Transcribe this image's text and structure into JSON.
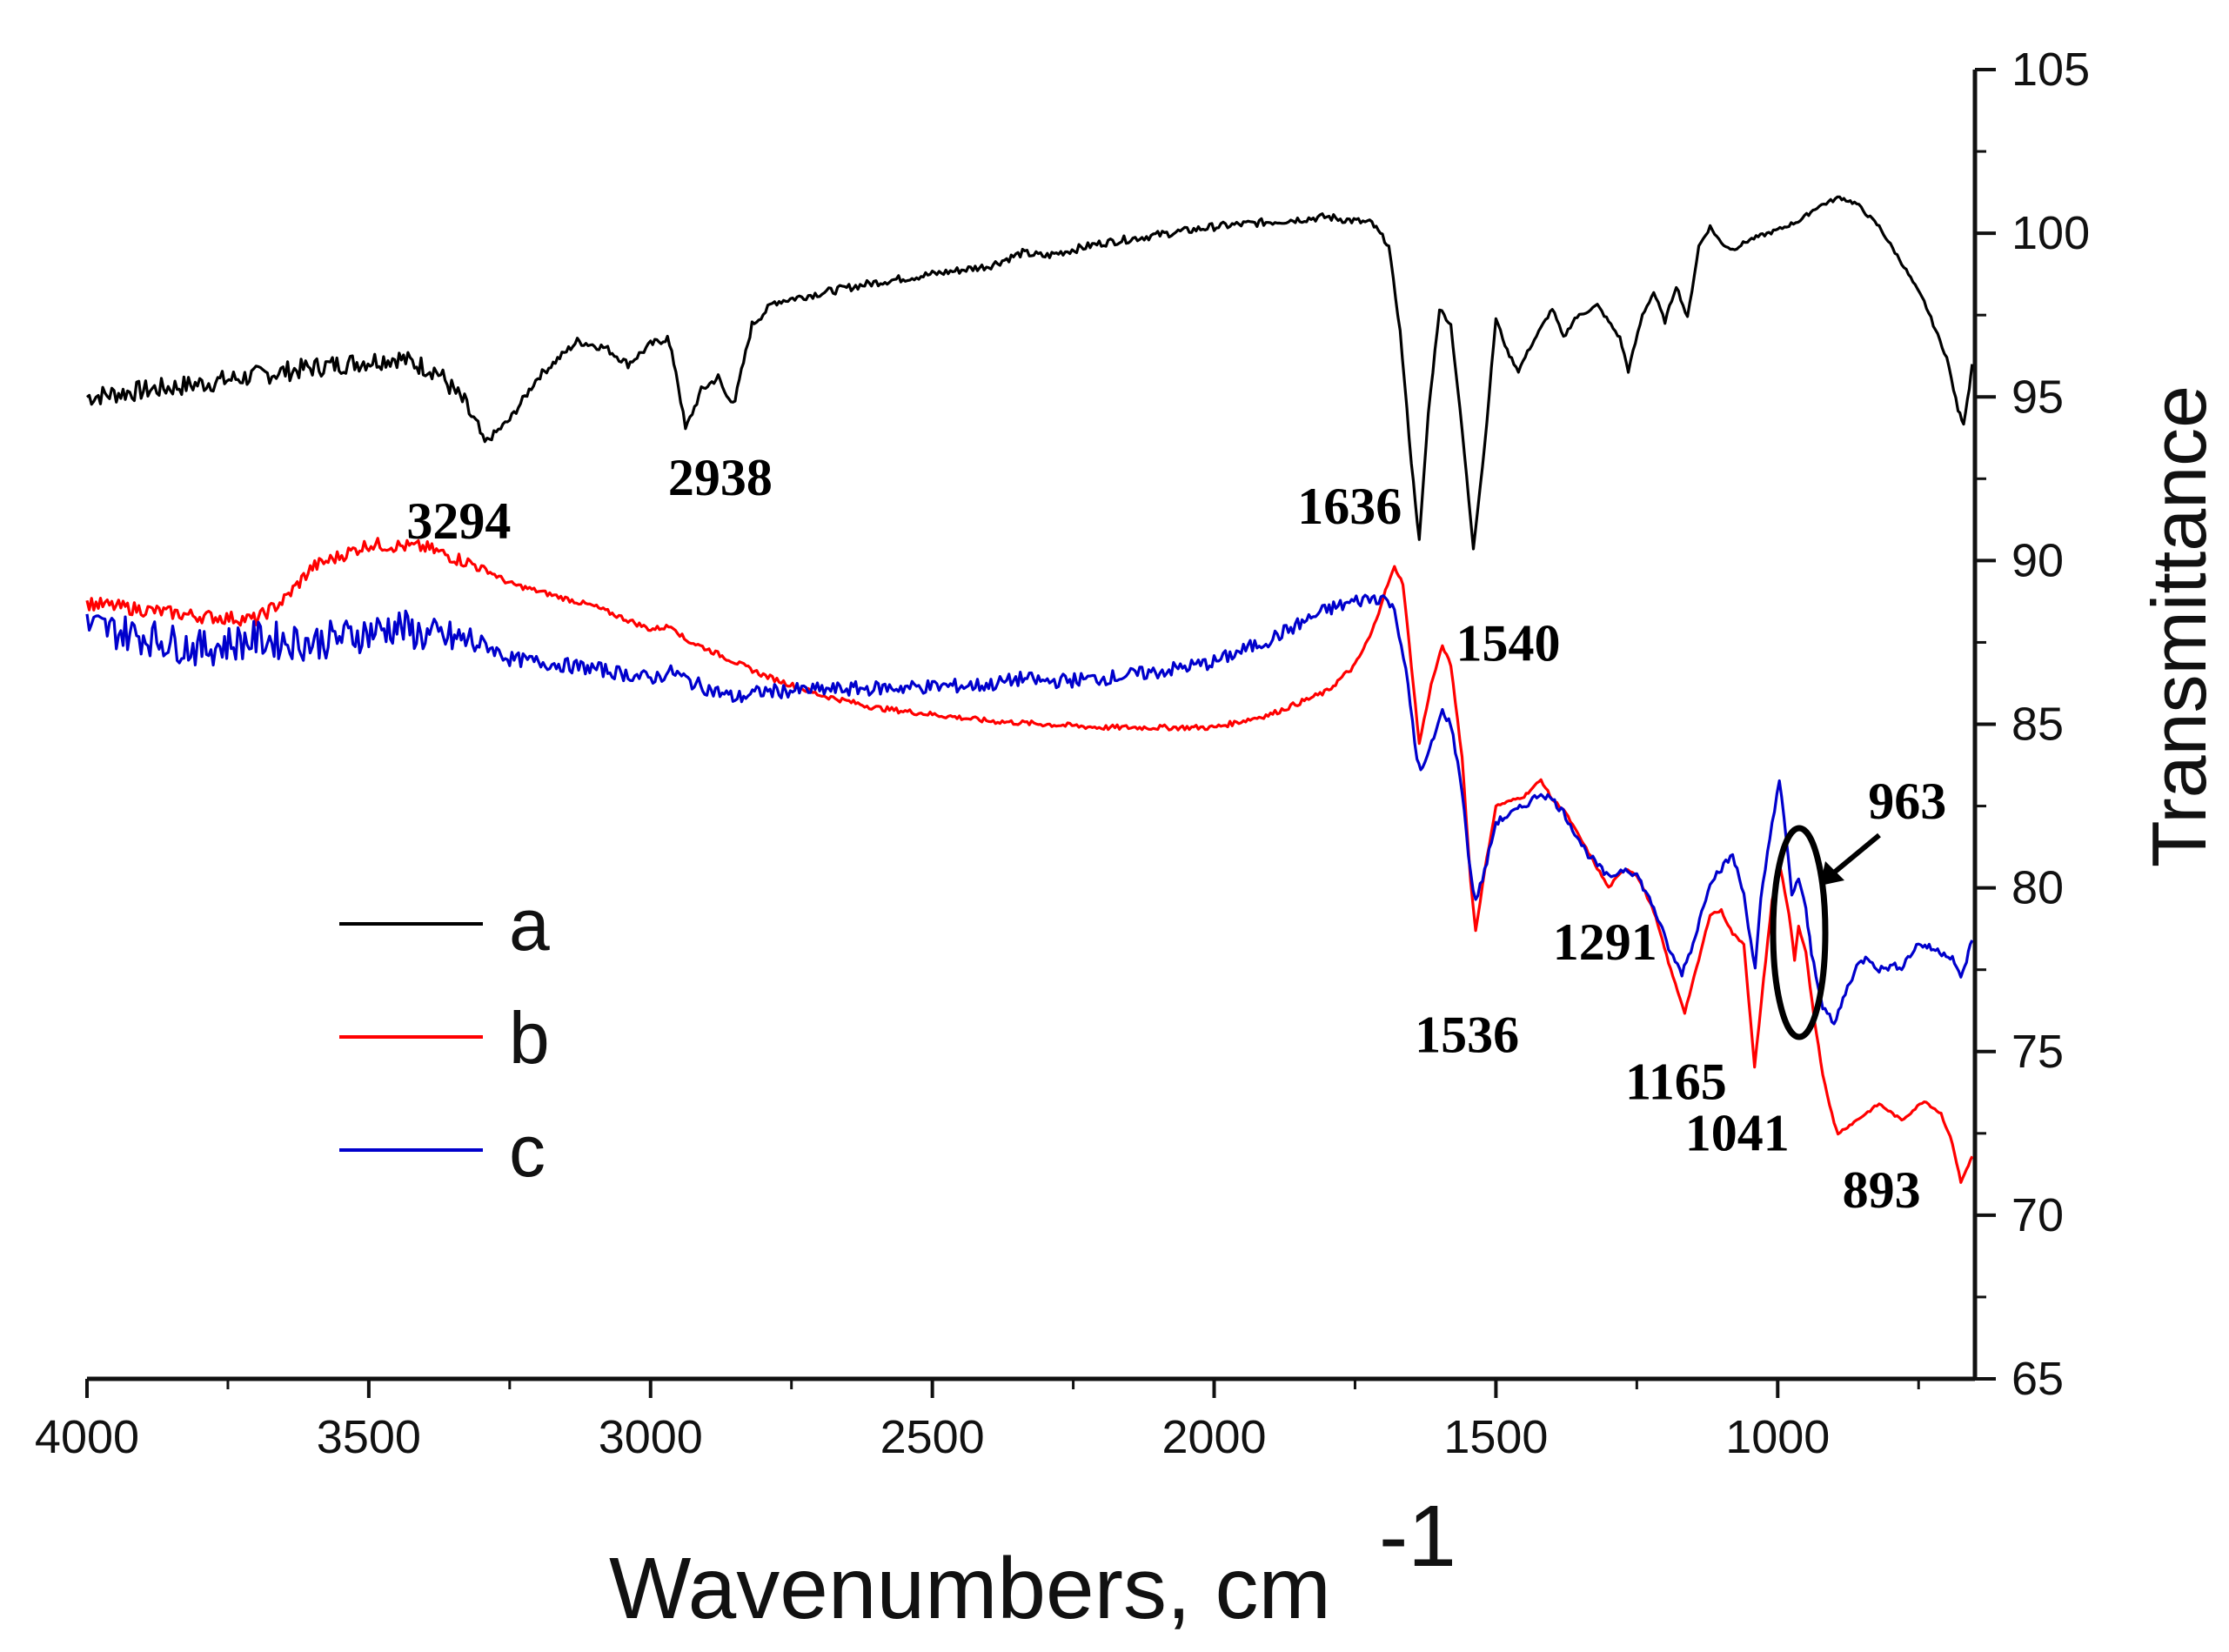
{
  "chart_data": {
    "type": "line",
    "title": "",
    "xlabel": "Wavenumbers, cm",
    "xlabel_superscript": "-1",
    "ylabel": "Transmittance",
    "xlim": [
      4000,
      650
    ],
    "ylim": [
      65,
      105
    ],
    "x_ticks": [
      4000,
      3500,
      3000,
      2500,
      2000,
      1500,
      1000
    ],
    "y_ticks": [
      65,
      70,
      75,
      80,
      85,
      90,
      95,
      100,
      105
    ],
    "x_tick_labels": [
      "4000",
      "3500",
      "3000",
      "2500",
      "2000",
      "1500",
      "1000"
    ],
    "y_tick_labels": [
      "65",
      "70",
      "75",
      "80",
      "85",
      "90",
      "95",
      "100",
      "105"
    ],
    "grid": false,
    "legend_position": "center-left",
    "series": [
      {
        "name": "a",
        "color": "#000000",
        "points": [
          [
            4000,
            95.0
          ],
          [
            3800,
            95.4
          ],
          [
            3600,
            95.9
          ],
          [
            3450,
            96.2
          ],
          [
            3380,
            95.8
          ],
          [
            3330,
            94.8
          ],
          [
            3294,
            93.6
          ],
          [
            3250,
            94.3
          ],
          [
            3200,
            95.6
          ],
          [
            3130,
            96.7
          ],
          [
            3080,
            96.5
          ],
          [
            3040,
            96.0
          ],
          [
            3000,
            96.6
          ],
          [
            2970,
            96.8
          ],
          [
            2955,
            95.8
          ],
          [
            2938,
            94.0
          ],
          [
            2910,
            95.2
          ],
          [
            2880,
            95.6
          ],
          [
            2865,
            95.0
          ],
          [
            2850,
            94.9
          ],
          [
            2820,
            97.2
          ],
          [
            2780,
            97.9
          ],
          [
            2600,
            98.5
          ],
          [
            2400,
            99.0
          ],
          [
            2340,
            99.4
          ],
          [
            2300,
            99.3
          ],
          [
            2200,
            99.7
          ],
          [
            2000,
            100.2
          ],
          [
            1800,
            100.5
          ],
          [
            1720,
            100.3
          ],
          [
            1690,
            99.6
          ],
          [
            1670,
            97.0
          ],
          [
            1650,
            93.0
          ],
          [
            1636,
            90.6
          ],
          [
            1620,
            94.5
          ],
          [
            1600,
            97.7
          ],
          [
            1580,
            97.2
          ],
          [
            1560,
            94.0
          ],
          [
            1540,
            90.4
          ],
          [
            1520,
            93.5
          ],
          [
            1500,
            97.4
          ],
          [
            1480,
            96.4
          ],
          [
            1460,
            95.8
          ],
          [
            1440,
            96.5
          ],
          [
            1400,
            97.7
          ],
          [
            1380,
            96.8
          ],
          [
            1360,
            97.4
          ],
          [
            1320,
            97.8
          ],
          [
            1280,
            96.8
          ],
          [
            1265,
            95.8
          ],
          [
            1240,
            97.5
          ],
          [
            1220,
            98.2
          ],
          [
            1200,
            97.3
          ],
          [
            1180,
            98.4
          ],
          [
            1160,
            97.4
          ],
          [
            1140,
            99.6
          ],
          [
            1120,
            100.2
          ],
          [
            1100,
            99.7
          ],
          [
            1080,
            99.5
          ],
          [
            1050,
            99.8
          ],
          [
            1000,
            100.1
          ],
          [
            960,
            100.4
          ],
          [
            930,
            100.8
          ],
          [
            890,
            101.1
          ],
          [
            860,
            100.9
          ],
          [
            820,
            100.2
          ],
          [
            780,
            99.1
          ],
          [
            740,
            97.9
          ],
          [
            700,
            96.2
          ],
          [
            680,
            94.6
          ],
          [
            670,
            94.2
          ],
          [
            660,
            95.3
          ],
          [
            655,
            96.0
          ]
        ]
      },
      {
        "name": "b",
        "color": "#ff0000",
        "points": [
          [
            4000,
            88.7
          ],
          [
            3900,
            88.5
          ],
          [
            3800,
            88.3
          ],
          [
            3700,
            88.2
          ],
          [
            3650,
            88.8
          ],
          [
            3600,
            89.8
          ],
          [
            3500,
            90.5
          ],
          [
            3400,
            90.4
          ],
          [
            3300,
            89.8
          ],
          [
            3250,
            89.3
          ],
          [
            3100,
            88.6
          ],
          [
            3000,
            87.9
          ],
          [
            2960,
            88.0
          ],
          [
            2940,
            87.6
          ],
          [
            2900,
            87.3
          ],
          [
            2850,
            86.9
          ],
          [
            2800,
            86.5
          ],
          [
            2700,
            85.9
          ],
          [
            2600,
            85.5
          ],
          [
            2400,
            85.1
          ],
          [
            2200,
            84.9
          ],
          [
            2000,
            84.9
          ],
          [
            1900,
            85.3
          ],
          [
            1800,
            86.0
          ],
          [
            1750,
            86.8
          ],
          [
            1720,
            87.8
          ],
          [
            1700,
            88.9
          ],
          [
            1680,
            89.8
          ],
          [
            1665,
            89.3
          ],
          [
            1650,
            86.8
          ],
          [
            1636,
            84.4
          ],
          [
            1615,
            86.2
          ],
          [
            1595,
            87.4
          ],
          [
            1580,
            86.8
          ],
          [
            1560,
            84.0
          ],
          [
            1545,
            80.2
          ],
          [
            1536,
            78.7
          ],
          [
            1520,
            80.5
          ],
          [
            1500,
            82.5
          ],
          [
            1450,
            82.8
          ],
          [
            1420,
            83.3
          ],
          [
            1400,
            82.7
          ],
          [
            1380,
            82.4
          ],
          [
            1340,
            81.2
          ],
          [
            1300,
            80.0
          ],
          [
            1291,
            80.2
          ],
          [
            1270,
            80.6
          ],
          [
            1250,
            80.4
          ],
          [
            1220,
            79.3
          ],
          [
            1190,
            77.5
          ],
          [
            1165,
            76.2
          ],
          [
            1140,
            77.8
          ],
          [
            1120,
            79.2
          ],
          [
            1100,
            79.3
          ],
          [
            1080,
            78.6
          ],
          [
            1060,
            78.3
          ],
          [
            1041,
            74.5
          ],
          [
            1025,
            77.2
          ],
          [
            1010,
            79.6
          ],
          [
            995,
            80.6
          ],
          [
            980,
            79.2
          ],
          [
            970,
            77.8
          ],
          [
            963,
            78.8
          ],
          [
            950,
            78.0
          ],
          [
            935,
            76.0
          ],
          [
            920,
            74.3
          ],
          [
            900,
            72.8
          ],
          [
            893,
            72.5
          ],
          [
            860,
            72.9
          ],
          [
            820,
            73.4
          ],
          [
            780,
            72.9
          ],
          [
            740,
            73.5
          ],
          [
            710,
            73.1
          ],
          [
            690,
            72.2
          ],
          [
            675,
            71.0
          ],
          [
            665,
            71.4
          ],
          [
            655,
            71.8
          ]
        ]
      },
      {
        "name": "c",
        "color": "#0000cc",
        "points": [
          [
            4000,
            88.0
          ],
          [
            3900,
            87.7
          ],
          [
            3800,
            87.3
          ],
          [
            3700,
            87.6
          ],
          [
            3600,
            87.5
          ],
          [
            3500,
            87.8
          ],
          [
            3450,
            88.0
          ],
          [
            3400,
            87.7
          ],
          [
            3300,
            87.5
          ],
          [
            3250,
            87.0
          ],
          [
            3100,
            86.7
          ],
          [
            3000,
            86.4
          ],
          [
            2960,
            86.6
          ],
          [
            2930,
            86.3
          ],
          [
            2900,
            86.1
          ],
          [
            2850,
            85.8
          ],
          [
            2800,
            86.0
          ],
          [
            2600,
            86.1
          ],
          [
            2400,
            86.2
          ],
          [
            2340,
            86.4
          ],
          [
            2300,
            86.3
          ],
          [
            2200,
            86.4
          ],
          [
            2100,
            86.6
          ],
          [
            2000,
            86.9
          ],
          [
            1900,
            87.6
          ],
          [
            1800,
            88.5
          ],
          [
            1740,
            88.8
          ],
          [
            1700,
            88.9
          ],
          [
            1680,
            88.5
          ],
          [
            1660,
            86.7
          ],
          [
            1640,
            83.9
          ],
          [
            1630,
            83.6
          ],
          [
            1610,
            84.6
          ],
          [
            1595,
            85.4
          ],
          [
            1580,
            85.0
          ],
          [
            1560,
            83.0
          ],
          [
            1545,
            80.4
          ],
          [
            1536,
            79.6
          ],
          [
            1520,
            80.5
          ],
          [
            1500,
            82.0
          ],
          [
            1450,
            82.5
          ],
          [
            1420,
            82.9
          ],
          [
            1400,
            82.7
          ],
          [
            1380,
            82.3
          ],
          [
            1340,
            81.1
          ],
          [
            1300,
            80.3
          ],
          [
            1291,
            80.4
          ],
          [
            1270,
            80.6
          ],
          [
            1250,
            80.4
          ],
          [
            1220,
            79.4
          ],
          [
            1190,
            78.0
          ],
          [
            1170,
            77.4
          ],
          [
            1150,
            78.3
          ],
          [
            1120,
            80.2
          ],
          [
            1100,
            80.6
          ],
          [
            1080,
            81.0
          ],
          [
            1060,
            79.8
          ],
          [
            1040,
            77.5
          ],
          [
            1030,
            79.6
          ],
          [
            1010,
            82.0
          ],
          [
            997,
            83.3
          ],
          [
            985,
            81.5
          ],
          [
            975,
            79.8
          ],
          [
            963,
            80.3
          ],
          [
            950,
            79.3
          ],
          [
            940,
            78.0
          ],
          [
            920,
            76.4
          ],
          [
            900,
            75.8
          ],
          [
            880,
            76.8
          ],
          [
            860,
            77.6
          ],
          [
            840,
            77.9
          ],
          [
            820,
            77.5
          ],
          [
            800,
            77.6
          ],
          [
            780,
            77.6
          ],
          [
            750,
            78.3
          ],
          [
            720,
            78.1
          ],
          [
            690,
            77.9
          ],
          [
            675,
            77.2
          ],
          [
            665,
            77.8
          ],
          [
            655,
            78.4
          ]
        ]
      }
    ],
    "legend": [
      {
        "label": "a",
        "color": "#000000"
      },
      {
        "label": "b",
        "color": "#ff0000"
      },
      {
        "label": "c",
        "color": "#0000cc"
      }
    ],
    "annotations": [
      {
        "text": "3294",
        "x": 3294,
        "y": 93.6,
        "position": "below"
      },
      {
        "text": "2938",
        "x": 2938,
        "y": 94.0,
        "position": "below"
      },
      {
        "text": "1636",
        "x": 1636,
        "y": 90.6,
        "position": "left"
      },
      {
        "text": "1540",
        "x": 1540,
        "y": 90.4,
        "position": "below"
      },
      {
        "text": "1536",
        "x": 1536,
        "y": 78.7,
        "position": "below"
      },
      {
        "text": "1291",
        "x": 1291,
        "y": 80.2,
        "position": "below-left"
      },
      {
        "text": "1165",
        "x": 1165,
        "y": 76.2,
        "position": "below"
      },
      {
        "text": "1041",
        "x": 1041,
        "y": 74.5,
        "position": "below"
      },
      {
        "text": "893",
        "x": 893,
        "y": 72.5,
        "position": "below"
      },
      {
        "text": "963",
        "x": 963,
        "y": 78.8,
        "position": "upper-right with arrow to highlighted region"
      }
    ]
  }
}
